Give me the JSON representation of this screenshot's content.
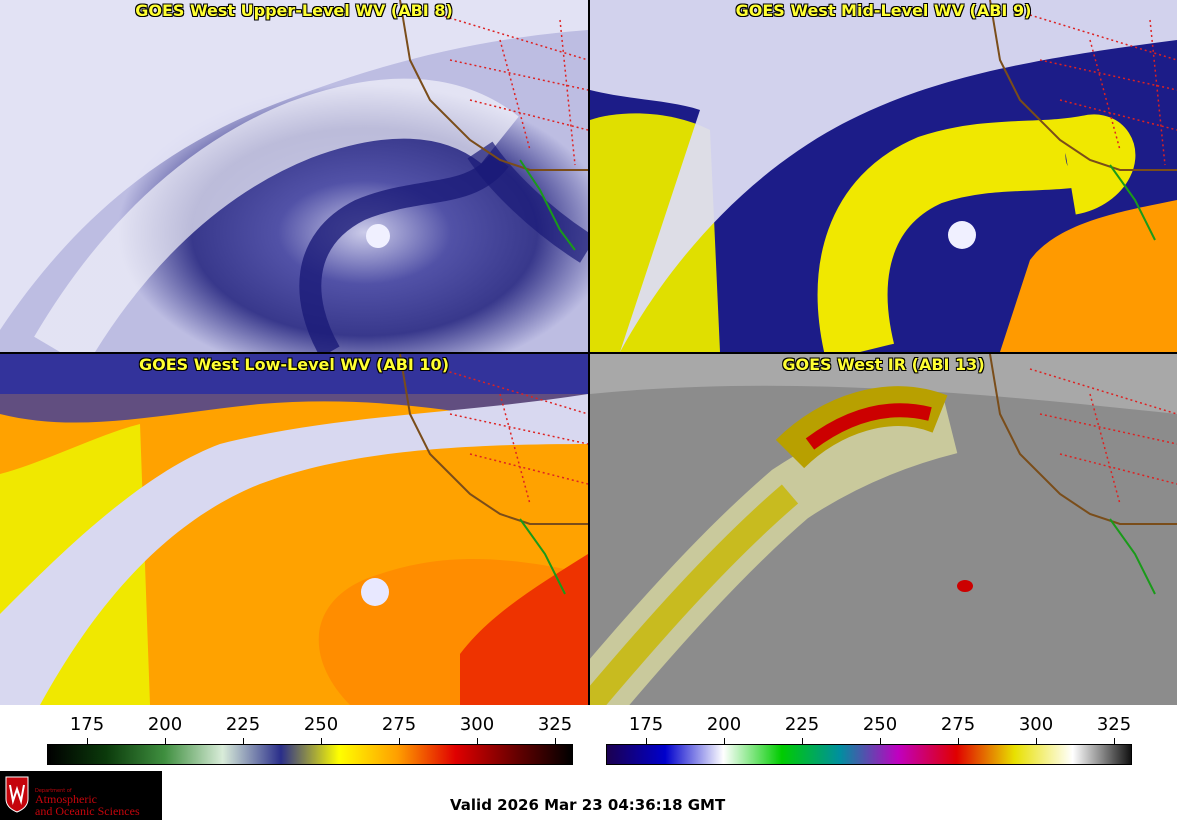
{
  "panels": [
    {
      "title": "GOES West Upper-Level WV (ABI 8)"
    },
    {
      "title": "GOES West Mid-Level WV (ABI 9)"
    },
    {
      "title": "GOES West Low-Level WV (ABI 10)"
    },
    {
      "title": "GOES West IR (ABI 13)"
    }
  ],
  "colorbar_wv": {
    "ticks": [
      "175",
      "200",
      "225",
      "250",
      "275",
      "300",
      "325"
    ],
    "colors": [
      "#000000",
      "#0b3a0b",
      "#3f8f3f",
      "#d9ecd9",
      "#2a2e8a",
      "#ffff00",
      "#ff9f00",
      "#e00000",
      "#6b0000",
      "#000000"
    ]
  },
  "colorbar_ir": {
    "ticks": [
      "175",
      "200",
      "225",
      "250",
      "275",
      "300",
      "325"
    ],
    "colors": [
      "#1b0050",
      "#0000cc",
      "#ffffff",
      "#00cc00",
      "#008f9f",
      "#c000c0",
      "#e00000",
      "#e8e000",
      "#ffffff",
      "#111111"
    ]
  },
  "footer": {
    "valid_time": "Valid 2026 Mar 23 04:36:18 GMT",
    "logo_dept": "Department of",
    "logo_line1": "Atmospheric",
    "logo_line2": "and Oceanic Sciences"
  }
}
